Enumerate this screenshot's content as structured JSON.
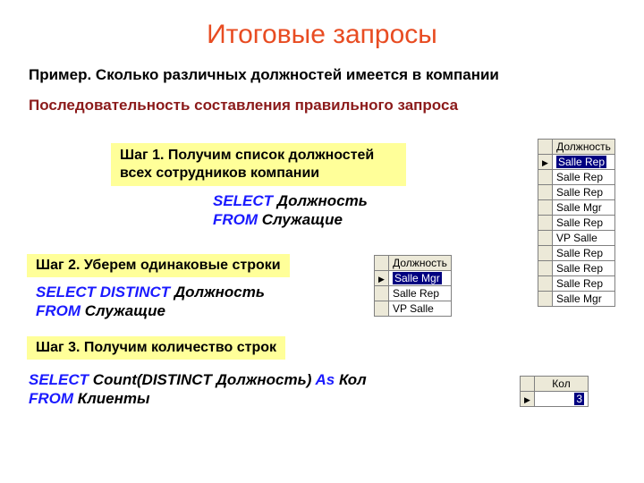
{
  "title": "Итоговые запросы",
  "subtitle": "Пример. Сколько различных должностей имеется в компании",
  "sequence": "Последовательность составления правильного запроса",
  "step1": "Шаг 1. Получим список должностей всех сотрудников компании",
  "q1_l1a": "SELECT",
  "q1_l1b": " Должность",
  "q1_l2a": "FROM",
  "q1_l2b": " Служащие",
  "step2": "Шаг 2. Уберем одинаковые строки",
  "q2_l1a": "SELECT DISTINCT",
  "q2_l1b": " Должность",
  "q2_l2a": "FROM",
  "q2_l2b": " Служащие",
  "step3": "Шаг 3. Получим количество строк",
  "q3_l1a": "SELECT",
  "q3_l1b": " Count(DISTINCT",
  "q3_l1c": " Должность)",
  "q3_l1d": " As",
  "q3_l1e": " Кол",
  "q3_l2a": "FROM",
  "q3_l2b": " Клиенты",
  "table1": {
    "header": "Должность",
    "rows": [
      "Salle Rep",
      "Salle Rep",
      "Salle Rep",
      "Salle Mgr",
      "Salle Rep",
      "VP Salle",
      "Salle Rep",
      "Salle Rep",
      "Salle Rep",
      "Salle Mgr"
    ],
    "selected_row": 0
  },
  "table2": {
    "header": "Должность",
    "rows": [
      "Salle Mgr",
      "Salle Rep",
      "VP Salle"
    ],
    "selected_row": 0
  },
  "table3": {
    "header": "Кол",
    "rows": [
      "3"
    ],
    "selected_row": 0
  },
  "colors": {
    "title": "#e84c22",
    "sequence": "#8b1a1a",
    "step_bg": "#ffff99",
    "keyword": "#1a1aff",
    "sel_bg": "#000080",
    "grid_header_bg": "#ece9d8",
    "grid_border": "#808080"
  }
}
